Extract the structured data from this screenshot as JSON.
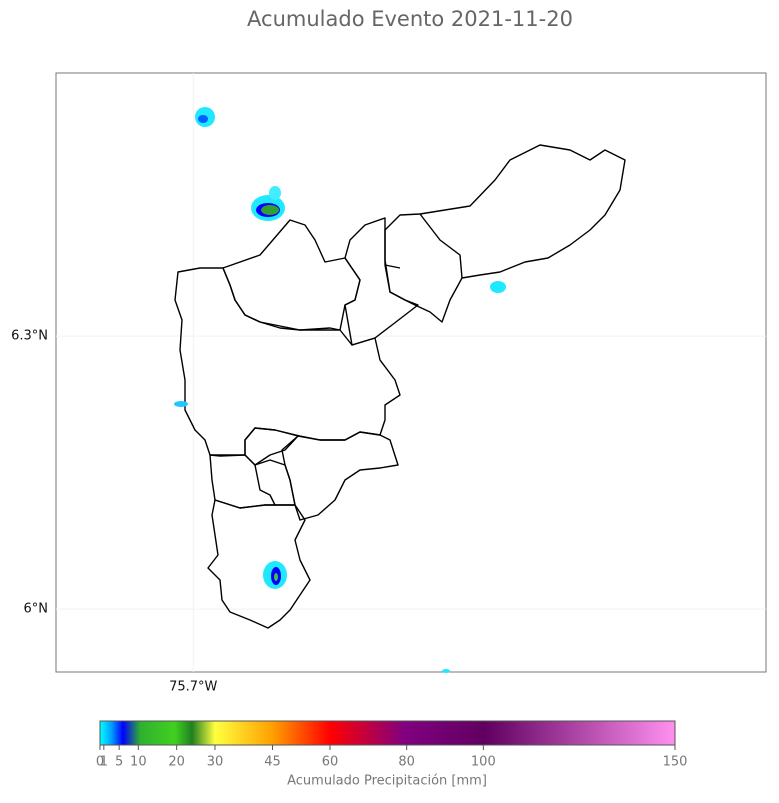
{
  "chart_data": {
    "type": "map",
    "title": "Acumulado Evento 2021-11-20",
    "xlim": [
      -75.851,
      -75.07
    ],
    "ylim": [
      5.931,
      6.589
    ],
    "xticks": [
      {
        "value": -75.7,
        "label": "75.7°W"
      }
    ],
    "yticks": [
      {
        "value": 6.3,
        "label": "6.3°N"
      },
      {
        "value": 6.0,
        "label": "6°N"
      }
    ],
    "grid": true,
    "colorbar": {
      "label": "Acumulado Precipitación [mm]",
      "lim": [
        0,
        150
      ],
      "ticks": [
        0,
        1,
        5,
        10,
        20,
        30,
        45,
        60,
        80,
        100,
        150
      ]
    }
  }
}
